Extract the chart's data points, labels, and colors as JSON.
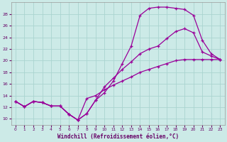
{
  "xlabel": "Windchill (Refroidissement éolien,°C)",
  "bg_color": "#cceae7",
  "line_color": "#990099",
  "grid_color": "#aad4d0",
  "x_ticks": [
    0,
    1,
    2,
    3,
    4,
    5,
    6,
    7,
    8,
    9,
    10,
    11,
    12,
    13,
    14,
    15,
    16,
    17,
    18,
    19,
    20,
    21,
    22,
    23
  ],
  "y_ticks": [
    10,
    12,
    14,
    16,
    18,
    20,
    22,
    24,
    26,
    28
  ],
  "xlim": [
    -0.5,
    23.5
  ],
  "ylim": [
    9.0,
    30.0
  ],
  "curve1_x": [
    0,
    1,
    2,
    3,
    4,
    5,
    6,
    7,
    8,
    9,
    10,
    11,
    12,
    13,
    14,
    15,
    16,
    17,
    18,
    19,
    20,
    21,
    22,
    23
  ],
  "curve1_y": [
    13.0,
    12.1,
    13.0,
    12.8,
    12.2,
    12.2,
    10.8,
    9.8,
    10.9,
    13.2,
    14.5,
    16.5,
    19.5,
    22.5,
    27.8,
    29.0,
    29.2,
    29.2,
    29.0,
    28.8,
    27.8,
    23.5,
    21.2,
    20.2
  ],
  "curve2_x": [
    0,
    1,
    2,
    3,
    4,
    5,
    6,
    7,
    8,
    9,
    10,
    11,
    12,
    13,
    14,
    15,
    16,
    17,
    18,
    19,
    20,
    21,
    22,
    23
  ],
  "curve2_y": [
    13.0,
    12.1,
    13.0,
    12.8,
    12.2,
    12.2,
    10.8,
    9.8,
    10.9,
    13.2,
    15.5,
    17.0,
    18.5,
    19.8,
    21.2,
    22.0,
    22.5,
    23.8,
    25.0,
    25.5,
    24.8,
    21.5,
    20.8,
    20.2
  ],
  "curve3_x": [
    0,
    1,
    2,
    3,
    4,
    5,
    6,
    7,
    8,
    9,
    10,
    11,
    12,
    13,
    14,
    15,
    16,
    17,
    18,
    19,
    20,
    21,
    22,
    23
  ],
  "curve3_y": [
    13.0,
    12.1,
    13.0,
    12.8,
    12.2,
    12.2,
    10.8,
    9.8,
    13.5,
    14.0,
    15.0,
    15.8,
    16.5,
    17.2,
    18.0,
    18.5,
    19.0,
    19.5,
    20.0,
    20.2,
    20.2,
    20.2,
    20.2,
    20.2
  ]
}
